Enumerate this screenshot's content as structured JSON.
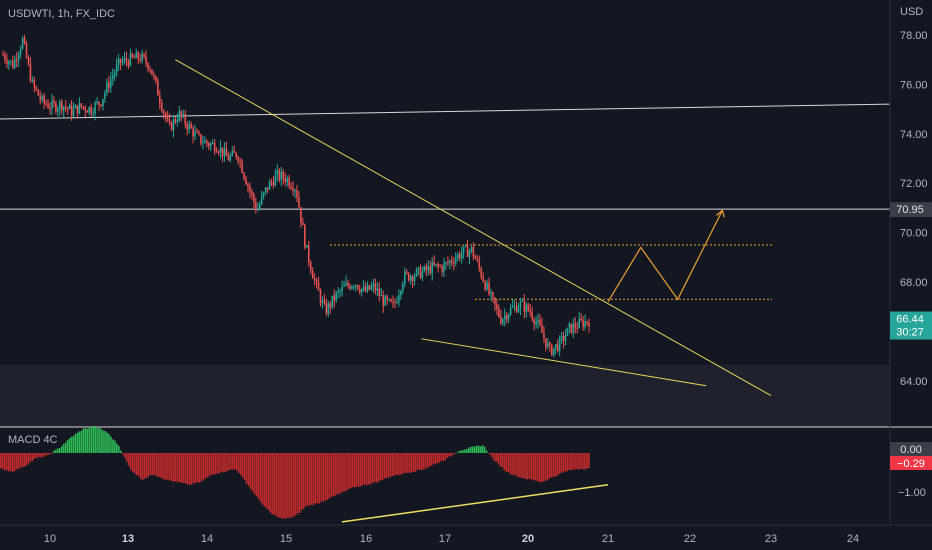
{
  "symbol_label": "USDWTI, 1h, FX_IDC",
  "currency_label": "USD",
  "colors": {
    "background": "#131722",
    "up": "#26a69a",
    "down": "#ef5350",
    "trendline": "#e6d85a",
    "projection": "#f0a030",
    "hline": "#d8d8d8",
    "zone": "#1f222c",
    "macd_pos": "#2ebd55",
    "macd_neg": "#c72c2c"
  },
  "price_tags": {
    "level": "70.95",
    "last": "66.44",
    "countdown": "30:27"
  },
  "macd": {
    "title": "MACD 4C",
    "zero_tag": "0.00",
    "value_tag": "−0.29",
    "ytick": "−1.00"
  },
  "chart_data": {
    "type": "candlestick",
    "title": "USDWTI, 1h, FX_IDC",
    "yaxis_ticks": [
      "64.00",
      "66.00",
      "68.00",
      "70.00",
      "72.00",
      "74.00",
      "76.00",
      "78.00"
    ],
    "yaxis_values": [
      64,
      66,
      68,
      70,
      72,
      74,
      76,
      78
    ],
    "xaxis_ticks": [
      {
        "label": "10",
        "bold": false
      },
      {
        "label": "13",
        "bold": true
      },
      {
        "label": "14",
        "bold": false
      },
      {
        "label": "15",
        "bold": false
      },
      {
        "label": "16",
        "bold": false
      },
      {
        "label": "17",
        "bold": false
      },
      {
        "label": "20",
        "bold": true
      },
      {
        "label": "21",
        "bold": false
      },
      {
        "label": "22",
        "bold": false
      },
      {
        "label": "23",
        "bold": false
      },
      {
        "label": "24",
        "bold": false
      }
    ],
    "close_path": [
      77.2,
      76.8,
      77.8,
      76.0,
      75.3,
      75.1,
      75.2,
      74.9,
      75.1,
      75.0,
      75.3,
      76.2,
      76.9,
      77.0,
      77.1,
      76.8,
      75.5,
      74.2,
      74.8,
      74.3,
      73.8,
      73.6,
      73.5,
      73.0,
      73.2,
      72.0,
      70.9,
      71.8,
      72.3,
      72.2,
      71.8,
      69.4,
      67.9,
      66.8,
      67.4,
      67.8,
      68.0,
      67.6,
      67.8,
      67.2,
      67.0,
      68.2,
      68.3,
      68.4,
      68.6,
      68.6,
      68.9,
      69.2,
      69.3,
      68.3,
      67.3,
      66.5,
      66.9,
      67.1,
      66.8,
      66.1,
      65.2,
      65.5,
      66.1,
      66.3,
      66.44
    ],
    "horizontal_level": 70.95,
    "resistance_dotted": 69.5,
    "support_dotted": 67.3,
    "upper_trendline": {
      "from": [
        13.6,
        77.0
      ],
      "to": [
        23.0,
        63.4
      ]
    },
    "lower_trendline": {
      "from": [
        16.7,
        65.7
      ],
      "to": [
        22.2,
        63.8
      ]
    },
    "sloped_line": {
      "from": [
        9.5,
        74.6
      ],
      "to": [
        24.3,
        75.2
      ]
    },
    "projection_path": [
      [
        21.0,
        67.2
      ],
      [
        21.4,
        69.4
      ],
      [
        21.85,
        67.3
      ],
      [
        22.4,
        70.9
      ]
    ],
    "last_price": 66.44,
    "macd_histogram": [
      -0.3,
      -0.35,
      -0.25,
      -0.1,
      -0.05,
      0.1,
      0.3,
      0.45,
      0.5,
      0.4,
      0.15,
      -0.3,
      -0.5,
      -0.4,
      -0.5,
      -0.55,
      -0.6,
      -0.55,
      -0.4,
      -0.35,
      -0.3,
      -0.6,
      -0.9,
      -1.15,
      -1.25,
      -1.2,
      -1.0,
      -0.95,
      -0.85,
      -0.75,
      -0.65,
      -0.6,
      -0.55,
      -0.45,
      -0.4,
      -0.35,
      -0.3,
      -0.2,
      -0.1,
      0.05,
      0.1,
      0.15,
      -0.15,
      -0.35,
      -0.45,
      -0.5,
      -0.55,
      -0.45,
      -0.35,
      -0.3,
      -0.29
    ],
    "macd_trendline": {
      "from": [
        15.7,
        -1.3
      ],
      "to": [
        21.0,
        -0.6
      ]
    }
  }
}
